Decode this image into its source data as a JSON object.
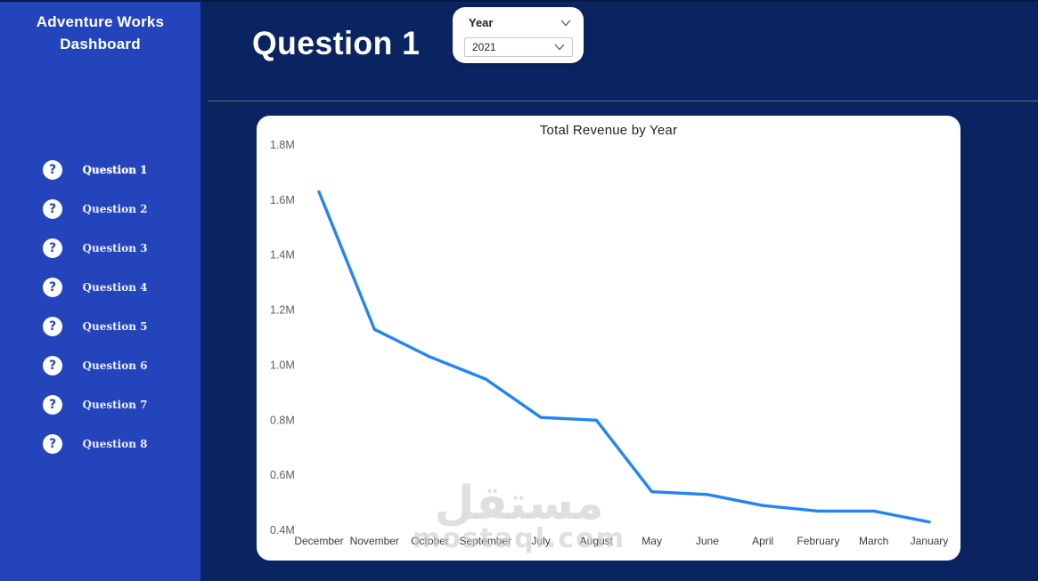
{
  "app": {
    "title_line1": "Adventure Works",
    "title_line2": "Dashboard"
  },
  "sidebar": {
    "items": [
      {
        "label": "Question 1",
        "active": true
      },
      {
        "label": "Question 2",
        "active": false
      },
      {
        "label": "Question 3",
        "active": false
      },
      {
        "label": "Question 4",
        "active": false
      },
      {
        "label": "Question 5",
        "active": false
      },
      {
        "label": "Question 6",
        "active": false
      },
      {
        "label": "Question 7",
        "active": false
      },
      {
        "label": "Question 8",
        "active": false
      }
    ],
    "item_icon": "?"
  },
  "header": {
    "title": "Question 1"
  },
  "filter": {
    "label": "Year",
    "selected_value": "2021"
  },
  "watermark": {
    "arabic": "مستقل",
    "domain": "mostaql.com"
  },
  "colors": {
    "sidebar_bg": "#2444BB",
    "main_bg": "#0A2462",
    "card_bg": "#FFFFFF",
    "line": "#2386F0",
    "axis_text": "#605E5C",
    "x_text": "#3B3A39",
    "title_text": "#252423",
    "divider": "#6E6D62"
  },
  "chart_data": {
    "type": "line",
    "title": "Total Revenue by Year",
    "categories": [
      "December",
      "November",
      "October",
      "September",
      "July",
      "August",
      "May",
      "June",
      "April",
      "February",
      "March",
      "January"
    ],
    "values_millions": [
      1.63,
      1.13,
      1.03,
      0.95,
      0.81,
      0.8,
      0.54,
      0.53,
      0.49,
      0.47,
      0.47,
      0.43
    ],
    "y_tick_labels": [
      "1.8M",
      "1.6M",
      "1.4M",
      "1.2M",
      "1.0M",
      "0.8M",
      "0.6M",
      "0.4M"
    ],
    "ylim": [
      0.4,
      1.8
    ],
    "xlabel": "",
    "ylabel": "",
    "grid": false,
    "legend_position": "none",
    "line_color": "#2386F0"
  }
}
